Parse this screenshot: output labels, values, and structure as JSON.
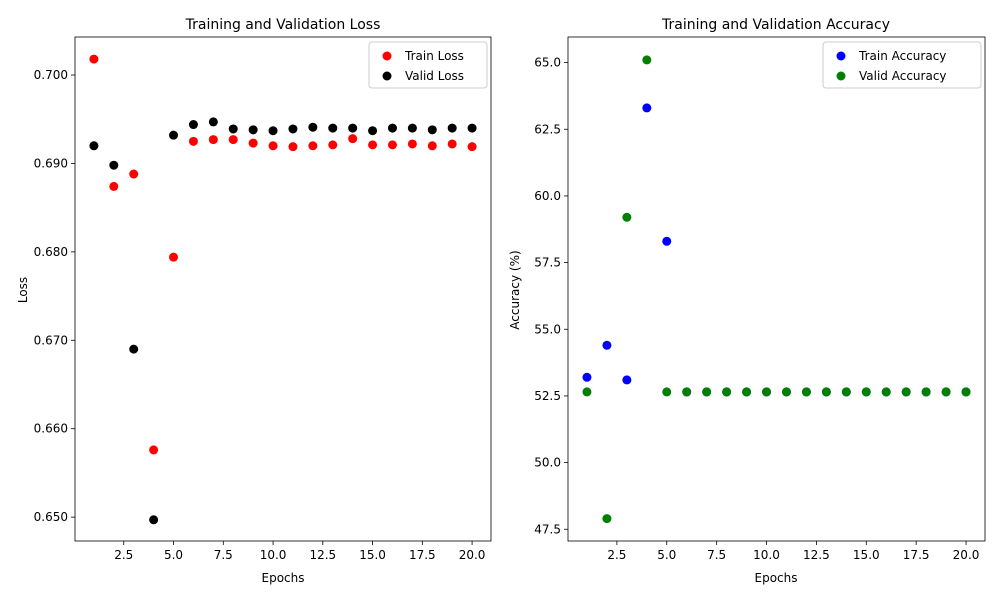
{
  "chart_data": [
    {
      "type": "scatter",
      "title": "Training and Validation Loss",
      "xlabel": "Epochs",
      "ylabel": "Loss",
      "xlim": [
        0.05,
        20.95
      ],
      "ylim": [
        0.6473,
        0.7043
      ],
      "xticks": [
        2.5,
        5.0,
        7.5,
        10.0,
        12.5,
        15.0,
        17.5,
        20.0
      ],
      "xtick_labels": [
        "2.5",
        "5.0",
        "7.5",
        "10.0",
        "12.5",
        "15.0",
        "17.5",
        "20.0"
      ],
      "yticks": [
        0.65,
        0.66,
        0.67,
        0.68,
        0.69,
        0.7
      ],
      "ytick_labels": [
        "0.650",
        "0.660",
        "0.670",
        "0.680",
        "0.690",
        "0.700"
      ],
      "grid": false,
      "legend_position": "top-right",
      "x": [
        1,
        2,
        3,
        4,
        5,
        6,
        7,
        8,
        9,
        10,
        11,
        12,
        13,
        14,
        15,
        16,
        17,
        18,
        19,
        20
      ],
      "series": [
        {
          "name": "Train Loss",
          "color": "#ff0000",
          "values": [
            0.7018,
            0.6874,
            0.6888,
            0.6576,
            0.6794,
            0.6925,
            0.6927,
            0.6927,
            0.6923,
            0.692,
            0.6919,
            0.692,
            0.6921,
            0.6928,
            0.6921,
            0.6921,
            0.6922,
            0.692,
            0.6922,
            0.6919
          ]
        },
        {
          "name": "Valid Loss",
          "color": "#000000",
          "values": [
            0.692,
            0.6898,
            0.669,
            0.6497,
            0.6932,
            0.6944,
            0.6947,
            0.6939,
            0.6938,
            0.6937,
            0.6939,
            0.6941,
            0.694,
            0.694,
            0.6937,
            0.694,
            0.694,
            0.6938,
            0.694,
            0.694
          ]
        }
      ]
    },
    {
      "type": "scatter",
      "title": "Training and Validation Accuracy",
      "xlabel": "Epochs",
      "ylabel": "Accuracy (%)",
      "xlim": [
        0.05,
        20.95
      ],
      "ylim": [
        47.06,
        65.96
      ],
      "xticks": [
        2.5,
        5.0,
        7.5,
        10.0,
        12.5,
        15.0,
        17.5,
        20.0
      ],
      "xtick_labels": [
        "2.5",
        "5.0",
        "7.5",
        "10.0",
        "12.5",
        "15.0",
        "17.5",
        "20.0"
      ],
      "yticks": [
        47.5,
        50.0,
        52.5,
        55.0,
        57.5,
        60.0,
        62.5,
        65.0
      ],
      "ytick_labels": [
        "47.5",
        "50.0",
        "52.5",
        "55.0",
        "57.5",
        "60.0",
        "62.5",
        "65.0"
      ],
      "grid": false,
      "legend_position": "top-right",
      "x": [
        1,
        2,
        3,
        4,
        5,
        6,
        7,
        8,
        9,
        10,
        11,
        12,
        13,
        14,
        15,
        16,
        17,
        18,
        19,
        20
      ],
      "series": [
        {
          "name": "Train Accuracy",
          "color": "#0000ff",
          "values": [
            53.2,
            54.4,
            53.1,
            63.3,
            58.3,
            52.65,
            52.65,
            52.65,
            52.65,
            52.65,
            52.65,
            52.65,
            52.65,
            52.65,
            52.65,
            52.65,
            52.65,
            52.65,
            52.65,
            52.65
          ]
        },
        {
          "name": "Valid Accuracy",
          "color": "#008000",
          "values": [
            52.65,
            47.9,
            59.2,
            65.1,
            52.65,
            52.65,
            52.65,
            52.65,
            52.65,
            52.65,
            52.65,
            52.65,
            52.65,
            52.65,
            52.65,
            52.65,
            52.65,
            52.65,
            52.65,
            52.65
          ]
        }
      ]
    }
  ]
}
